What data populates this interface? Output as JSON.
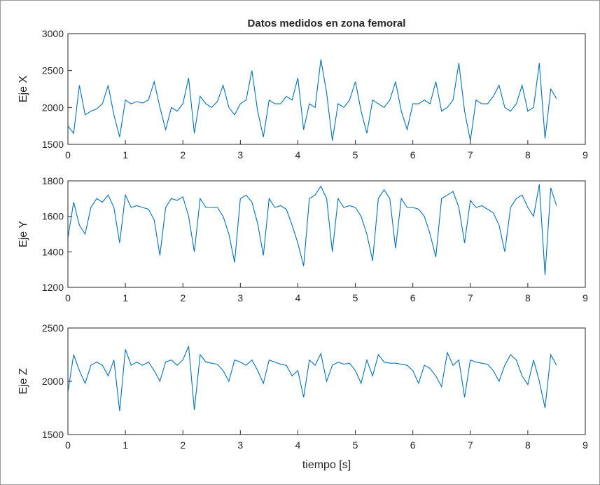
{
  "chart_data": [
    {
      "type": "line",
      "title": "Datos medidos en zona femoral",
      "ylabel": "Eje X",
      "x": [
        0,
        0.1,
        0.2,
        0.3,
        0.4,
        0.5,
        0.6,
        0.7,
        0.8,
        0.9,
        1,
        1.1,
        1.2,
        1.3,
        1.4,
        1.5,
        1.6,
        1.7,
        1.8,
        1.9,
        2,
        2.1,
        2.2,
        2.3,
        2.4,
        2.5,
        2.6,
        2.7,
        2.8,
        2.9,
        3,
        3.1,
        3.2,
        3.3,
        3.4,
        3.5,
        3.6,
        3.7,
        3.8,
        3.9,
        4,
        4.1,
        4.2,
        4.3,
        4.4,
        4.5,
        4.6,
        4.7,
        4.8,
        4.9,
        5,
        5.1,
        5.2,
        5.3,
        5.4,
        5.5,
        5.6,
        5.7,
        5.8,
        5.9,
        6,
        6.1,
        6.2,
        6.3,
        6.4,
        6.5,
        6.6,
        6.7,
        6.8,
        6.9,
        7,
        7.1,
        7.2,
        7.3,
        7.4,
        7.5,
        7.6,
        7.7,
        7.8,
        7.9,
        8,
        8.1,
        8.2,
        8.3,
        8.4,
        8.5
      ],
      "series": [
        {
          "color": "#0072bd",
          "values": [
            1750,
            1650,
            2300,
            1900,
            1950,
            1980,
            2050,
            2300,
            1900,
            1600,
            2100,
            2050,
            2080,
            2060,
            2100,
            2350,
            2000,
            1700,
            2000,
            1950,
            2050,
            2400,
            1650,
            2150,
            2050,
            2000,
            2080,
            2300,
            2000,
            1900,
            2050,
            2100,
            2500,
            1950,
            1600,
            2100,
            2050,
            2050,
            2150,
            2100,
            2400,
            1700,
            2050,
            2000,
            2650,
            2200,
            1550,
            2050,
            2000,
            2100,
            2350,
            1950,
            1650,
            2100,
            2050,
            2000,
            2100,
            2350,
            1950,
            1700,
            2050,
            2050,
            2100,
            2050,
            2350,
            1950,
            2000,
            2100,
            2600,
            1950,
            1550,
            2100,
            2050,
            2050,
            2150,
            2300,
            2000,
            1950,
            2050,
            2300,
            1950,
            2000,
            2600,
            1580,
            2250,
            2120
          ]
        }
      ],
      "xlim": [
        0,
        9
      ],
      "xticks": [
        0,
        1,
        2,
        3,
        4,
        5,
        6,
        7,
        8,
        9
      ],
      "ylim": [
        1500,
        3000
      ],
      "yticks": [
        1500,
        2000,
        2500,
        3000
      ]
    },
    {
      "type": "line",
      "ylabel": "Eje Y",
      "x": [
        0,
        0.1,
        0.2,
        0.3,
        0.4,
        0.5,
        0.6,
        0.7,
        0.8,
        0.9,
        1,
        1.1,
        1.2,
        1.3,
        1.4,
        1.5,
        1.6,
        1.7,
        1.8,
        1.9,
        2,
        2.1,
        2.2,
        2.3,
        2.4,
        2.5,
        2.6,
        2.7,
        2.8,
        2.9,
        3,
        3.1,
        3.2,
        3.3,
        3.4,
        3.5,
        3.6,
        3.7,
        3.8,
        3.9,
        4,
        4.1,
        4.2,
        4.3,
        4.4,
        4.5,
        4.6,
        4.7,
        4.8,
        4.9,
        5,
        5.1,
        5.2,
        5.3,
        5.4,
        5.5,
        5.6,
        5.7,
        5.8,
        5.9,
        6,
        6.1,
        6.2,
        6.3,
        6.4,
        6.5,
        6.6,
        6.7,
        6.8,
        6.9,
        7,
        7.1,
        7.2,
        7.3,
        7.4,
        7.5,
        7.6,
        7.7,
        7.8,
        7.9,
        8,
        8.1,
        8.2,
        8.3,
        8.4,
        8.5
      ],
      "series": [
        {
          "color": "#0072bd",
          "values": [
            1480,
            1680,
            1550,
            1500,
            1650,
            1700,
            1680,
            1720,
            1650,
            1450,
            1720,
            1650,
            1660,
            1650,
            1640,
            1580,
            1380,
            1650,
            1700,
            1690,
            1710,
            1600,
            1400,
            1700,
            1650,
            1650,
            1650,
            1600,
            1500,
            1340,
            1700,
            1720,
            1680,
            1560,
            1380,
            1700,
            1650,
            1660,
            1640,
            1550,
            1450,
            1320,
            1700,
            1720,
            1770,
            1700,
            1400,
            1700,
            1650,
            1660,
            1650,
            1600,
            1500,
            1350,
            1700,
            1750,
            1700,
            1420,
            1700,
            1650,
            1650,
            1640,
            1600,
            1500,
            1370,
            1700,
            1720,
            1740,
            1650,
            1450,
            1690,
            1650,
            1660,
            1640,
            1620,
            1550,
            1400,
            1650,
            1700,
            1720,
            1650,
            1600,
            1780,
            1270,
            1760,
            1660
          ]
        }
      ],
      "xlim": [
        0,
        9
      ],
      "xticks": [
        0,
        1,
        2,
        3,
        4,
        5,
        6,
        7,
        8,
        9
      ],
      "ylim": [
        1200,
        1800
      ],
      "yticks": [
        1200,
        1400,
        1600,
        1800
      ]
    },
    {
      "type": "line",
      "ylabel": "Eje Z",
      "xlabel": "tiempo [s]",
      "x": [
        0,
        0.1,
        0.2,
        0.3,
        0.4,
        0.5,
        0.6,
        0.7,
        0.8,
        0.9,
        1,
        1.1,
        1.2,
        1.3,
        1.4,
        1.5,
        1.6,
        1.7,
        1.8,
        1.9,
        2,
        2.1,
        2.2,
        2.3,
        2.4,
        2.5,
        2.6,
        2.7,
        2.8,
        2.9,
        3,
        3.1,
        3.2,
        3.3,
        3.4,
        3.5,
        3.6,
        3.7,
        3.8,
        3.9,
        4,
        4.1,
        4.2,
        4.3,
        4.4,
        4.5,
        4.6,
        4.7,
        4.8,
        4.9,
        5,
        5.1,
        5.2,
        5.3,
        5.4,
        5.5,
        5.6,
        5.7,
        5.8,
        5.9,
        6,
        6.1,
        6.2,
        6.3,
        6.4,
        6.5,
        6.6,
        6.7,
        6.8,
        6.9,
        7,
        7.1,
        7.2,
        7.3,
        7.4,
        7.5,
        7.6,
        7.7,
        7.8,
        7.9,
        8,
        8.1,
        8.2,
        8.3,
        8.4,
        8.5
      ],
      "series": [
        {
          "color": "#0072bd",
          "values": [
            1900,
            2250,
            2100,
            1980,
            2150,
            2180,
            2150,
            2050,
            2200,
            1720,
            2300,
            2150,
            2180,
            2150,
            2180,
            2100,
            2000,
            2180,
            2200,
            2150,
            2200,
            2330,
            1730,
            2250,
            2180,
            2170,
            2160,
            2100,
            2000,
            2200,
            2180,
            2150,
            2200,
            2100,
            1980,
            2200,
            2180,
            2160,
            2150,
            2050,
            2100,
            1850,
            2200,
            2150,
            2260,
            2000,
            2150,
            2180,
            2160,
            2170,
            2100,
            1980,
            2200,
            2050,
            2250,
            2180,
            2170,
            2170,
            2160,
            2150,
            2100,
            1980,
            2150,
            2120,
            2050,
            1950,
            2270,
            2150,
            2200,
            1850,
            2200,
            2180,
            2170,
            2160,
            2100,
            2000,
            2150,
            2250,
            2200,
            2050,
            1970,
            2200,
            2000,
            1750,
            2250,
            2150
          ]
        }
      ],
      "xlim": [
        0,
        9
      ],
      "xticks": [
        0,
        1,
        2,
        3,
        4,
        5,
        6,
        7,
        8,
        9
      ],
      "ylim": [
        1500,
        2500
      ],
      "yticks": [
        1500,
        2000,
        2500
      ]
    }
  ]
}
